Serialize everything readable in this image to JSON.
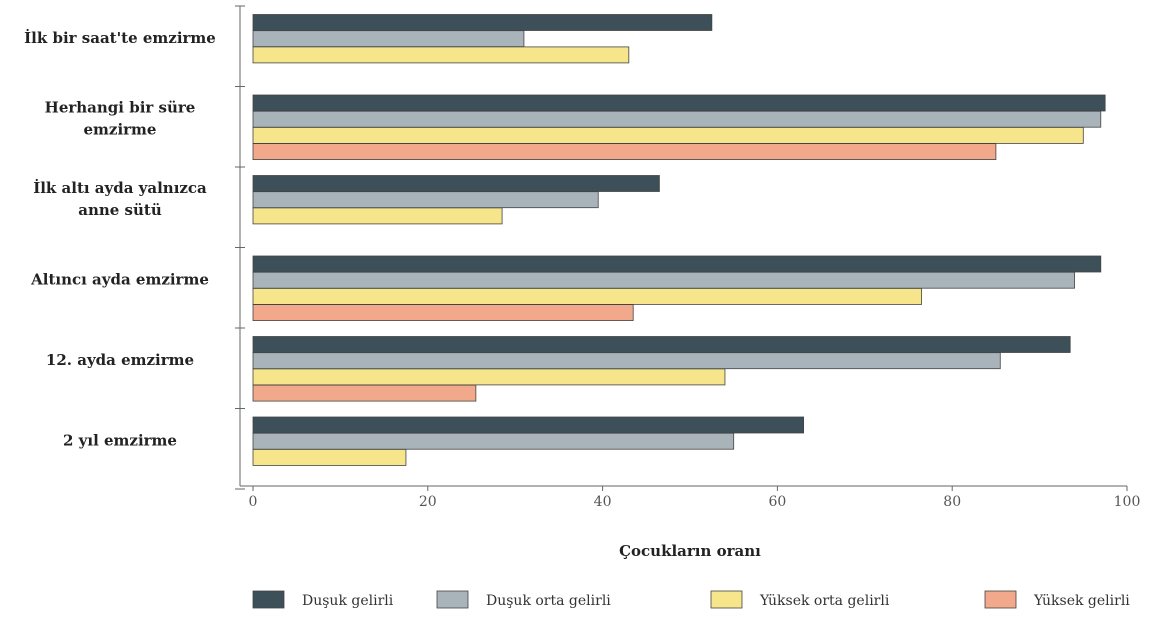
{
  "chart_data": {
    "type": "bar",
    "orientation": "horizontal",
    "categories": [
      [
        "İlk bir saat'te emzirme"
      ],
      [
        "Herhangi bir süre",
        "emzirme"
      ],
      [
        "İlk altı ayda yalnızca",
        "anne sütü"
      ],
      [
        "Altıncı ayda emzirme"
      ],
      [
        "12. ayda emzirme"
      ],
      [
        "2 yıl emzirme"
      ]
    ],
    "series": [
      {
        "name": "Duşuk gelirli",
        "color": "#3d4f58",
        "values": [
          52.5,
          97.5,
          46.5,
          97,
          93.5,
          63
        ]
      },
      {
        "name": "Duşuk orta gelirli",
        "color": "#a9b3ba",
        "values": [
          31,
          97,
          39.5,
          94,
          85.5,
          55
        ]
      },
      {
        "name": "Yüksek orta gelirli",
        "color": "#f6e58a",
        "values": [
          43,
          95,
          28.5,
          76.5,
          54,
          17.5
        ]
      },
      {
        "name": "Yüksek gelirli",
        "color": "#f2a88a",
        "values": [
          null,
          85,
          null,
          43.5,
          25.5,
          null
        ]
      }
    ],
    "xlim": [
      0,
      100
    ],
    "xticks": [
      "0",
      "20",
      "40",
      "60",
      "80",
      "100"
    ],
    "xlabel": "Çocukların oranı",
    "legend_position": "bottom"
  }
}
